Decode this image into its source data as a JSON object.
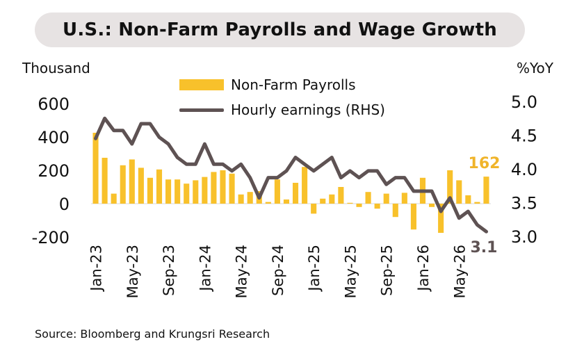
{
  "title": "U.S.: Non-Farm Payrolls and Wage Growth",
  "units": {
    "left": "Thousand",
    "right": "%YoY"
  },
  "source": "Source: Bloomberg and Krungsri Research",
  "colors": {
    "bars": "#f8c12b",
    "line": "#5e5253",
    "highlight": "#f0b42a",
    "endLabel": "#5e5253"
  },
  "annotations": {
    "last_bar": "162",
    "last_line": "3.1"
  },
  "chart_data": {
    "type": "bar",
    "title": "U.S.: Non-Farm Payrolls and Wage Growth",
    "ylabel": "Thousand",
    "y2label": "%YoY",
    "ylim": [
      -200,
      600
    ],
    "y2lim": [
      3.0,
      5.0
    ],
    "yticks": [
      "600",
      "400",
      "200",
      "0",
      "-200"
    ],
    "y2ticks": [
      "5.0",
      "4.5",
      "4.0",
      "3.5",
      "3.0"
    ],
    "x_tick_labels": [
      "Jan-23",
      "May-23",
      "Sep-23",
      "Jan-24",
      "May-24",
      "Sep-24",
      "Jan-25",
      "May-25",
      "Sep-25",
      "Jan-26",
      "May-26"
    ],
    "legend": [
      "Non-Farm Payrolls",
      "Hourly earnings (RHS)"
    ],
    "legend_position": "top-center",
    "categories": [
      "Jan-23",
      "Feb-23",
      "Mar-23",
      "Apr-23",
      "May-23",
      "Jun-23",
      "Jul-23",
      "Aug-23",
      "Sep-23",
      "Oct-23",
      "Nov-23",
      "Dec-23",
      "Jan-24",
      "Feb-24",
      "Mar-24",
      "Apr-24",
      "May-24",
      "Jun-24",
      "Jul-24",
      "Aug-24",
      "Sep-24",
      "Oct-24",
      "Nov-24",
      "Dec-24",
      "Jan-25",
      "Feb-25",
      "Mar-25",
      "Apr-25",
      "May-25",
      "Jun-25",
      "Jul-25",
      "Aug-25",
      "Sep-25",
      "Oct-25",
      "Nov-25",
      "Dec-25",
      "Jan-26",
      "Feb-26",
      "Mar-26",
      "Apr-26",
      "May-26",
      "Jun-26",
      "Jul-26",
      "Aug-26"
    ],
    "series": [
      {
        "name": "Non-Farm Payrolls",
        "type": "bar",
        "axis": "left",
        "values": [
          425,
          275,
          60,
          230,
          265,
          215,
          155,
          205,
          145,
          145,
          120,
          140,
          160,
          190,
          200,
          180,
          55,
          70,
          75,
          10,
          145,
          25,
          125,
          220,
          -60,
          30,
          55,
          100,
          5,
          -20,
          70,
          -30,
          60,
          -80,
          65,
          -155,
          155,
          -20,
          -175,
          200,
          140,
          50,
          10,
          162
        ]
      },
      {
        "name": "Hourly earnings (RHS)",
        "type": "line",
        "axis": "right",
        "values": [
          4.45,
          4.75,
          4.57,
          4.57,
          4.37,
          4.67,
          4.67,
          4.47,
          4.37,
          4.17,
          4.07,
          4.07,
          4.37,
          4.07,
          4.07,
          3.97,
          4.07,
          3.87,
          3.57,
          3.87,
          3.87,
          3.97,
          4.17,
          4.07,
          3.97,
          4.07,
          4.17,
          3.87,
          3.97,
          3.87,
          3.97,
          3.97,
          3.77,
          3.87,
          3.87,
          3.67,
          3.67,
          3.67,
          3.37,
          3.57,
          3.27,
          3.37,
          3.17,
          3.07
        ]
      }
    ]
  }
}
